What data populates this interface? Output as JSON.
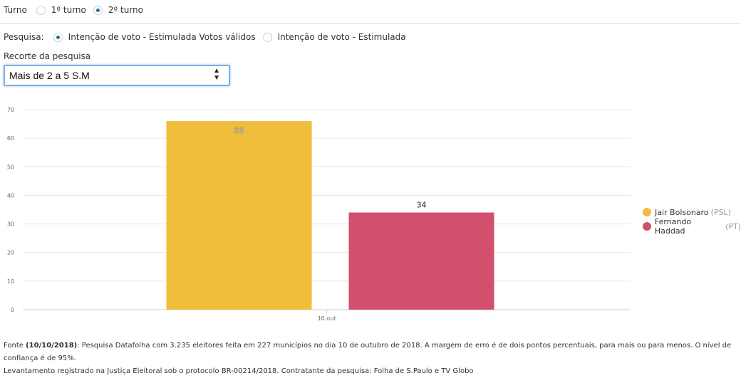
{
  "turno": {
    "label": "Turno",
    "options": [
      {
        "label": "1º turno",
        "checked": false
      },
      {
        "label": "2º turno",
        "checked": true
      }
    ]
  },
  "pesquisa": {
    "label": "Pesquisa:",
    "options": [
      {
        "label": "Intenção de voto - Estimulada Votos válidos",
        "checked": true
      },
      {
        "label": "Intenção de voto - Estimulada",
        "checked": false
      }
    ]
  },
  "recorte": {
    "label": "Recorte da pesquisa",
    "selected": "Mais de 2 a 5 S.M"
  },
  "chart_data": {
    "type": "bar",
    "categories": [
      "10.out"
    ],
    "series": [
      {
        "name": "Jair Bolsonaro",
        "party": "(PSL)",
        "values": [
          66
        ],
        "color": "#f0be3c"
      },
      {
        "name": "Fernando Haddad",
        "party": "(PT)",
        "values": [
          34
        ],
        "color": "#d2506e"
      }
    ],
    "ylim": [
      0,
      70
    ],
    "yticks": [
      0,
      10,
      20,
      30,
      40,
      50,
      60,
      70
    ],
    "grid": true,
    "legend": "right"
  },
  "footer": {
    "prefix": "Fonte ",
    "date": "(10/10/2018)",
    "line1": ": Pesquisa Datafolha com 3.235 eleitores feita em 227 municípios no dia 10 de outubro de 2018. A margem de erro é de dois pontos percentuais, para mais ou para menos. O nível de confiança é de 95%.",
    "line2": "Levantamento registrado na Justiça Eleitoral sob o protocolo BR-00214/2018. Contratante da pesquisa: Folha de S.Paulo e TV Globo"
  }
}
